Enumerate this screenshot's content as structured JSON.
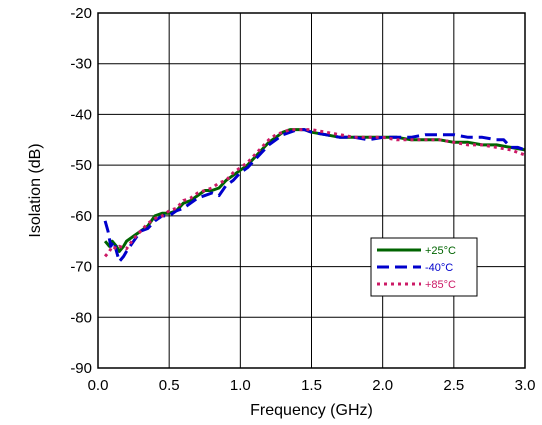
{
  "chart_data": {
    "type": "line",
    "title": "",
    "xlabel": "Frequency (GHz)",
    "ylabel": "Isolation (dB)",
    "xlim": [
      0.0,
      3.0
    ],
    "ylim": [
      -90,
      -20
    ],
    "xticks": [
      0.0,
      0.5,
      1.0,
      1.5,
      2.0,
      2.5,
      3.0
    ],
    "xtick_labels": [
      "0.0",
      "0.5",
      "1.0",
      "1.5",
      "2.0",
      "2.5",
      "3.0"
    ],
    "yticks": [
      -90,
      -80,
      -70,
      -60,
      -50,
      -40,
      -30,
      -20
    ],
    "ytick_labels": [
      "-90",
      "-80",
      "-70",
      "-60",
      "-50",
      "-40",
      "-30",
      "-20"
    ],
    "grid": true,
    "legend_position": "lower-right",
    "series": [
      {
        "name": "+25°C",
        "color": "#006400",
        "style": "solid",
        "x": [
          0.05,
          0.08,
          0.1,
          0.13,
          0.15,
          0.18,
          0.2,
          0.25,
          0.3,
          0.35,
          0.4,
          0.45,
          0.5,
          0.55,
          0.6,
          0.65,
          0.7,
          0.75,
          0.8,
          0.85,
          0.9,
          0.95,
          1.0,
          1.05,
          1.1,
          1.15,
          1.2,
          1.25,
          1.3,
          1.35,
          1.4,
          1.45,
          1.5,
          1.6,
          1.7,
          1.8,
          1.9,
          2.0,
          2.1,
          2.2,
          2.3,
          2.4,
          2.5,
          2.6,
          2.7,
          2.8,
          2.9,
          3.0
        ],
        "y": [
          -65,
          -66,
          -65,
          -66,
          -67,
          -66,
          -65,
          -64,
          -63,
          -62,
          -60,
          -59.5,
          -59.5,
          -59,
          -57.5,
          -57,
          -56,
          -55,
          -55,
          -54.5,
          -53,
          -52,
          -51,
          -50,
          -48.5,
          -47,
          -45.5,
          -44.5,
          -43.5,
          -43,
          -43,
          -43,
          -43.5,
          -44,
          -44.5,
          -44.5,
          -44.5,
          -44.5,
          -44.5,
          -45,
          -45,
          -45,
          -45.5,
          -45.5,
          -46,
          -46,
          -46.5,
          -47
        ]
      },
      {
        "name": "-40°C",
        "color": "#0000cc",
        "style": "dashed",
        "x": [
          0.05,
          0.07,
          0.09,
          0.11,
          0.13,
          0.15,
          0.18,
          0.2,
          0.25,
          0.3,
          0.35,
          0.4,
          0.45,
          0.5,
          0.55,
          0.6,
          0.65,
          0.7,
          0.75,
          0.8,
          0.85,
          0.9,
          0.95,
          1.0,
          1.05,
          1.1,
          1.15,
          1.2,
          1.25,
          1.3,
          1.35,
          1.4,
          1.45,
          1.5,
          1.6,
          1.7,
          1.8,
          1.9,
          2.0,
          2.1,
          2.2,
          2.3,
          2.4,
          2.5,
          2.6,
          2.7,
          2.8,
          2.85,
          2.9,
          2.95,
          3.0
        ],
        "y": [
          -61,
          -63,
          -66,
          -65,
          -67,
          -69,
          -68,
          -67,
          -65,
          -63,
          -62.5,
          -61,
          -60,
          -60,
          -59,
          -58.5,
          -57.5,
          -56.5,
          -56,
          -55.5,
          -56,
          -54,
          -53,
          -51.5,
          -50.5,
          -49,
          -47.5,
          -46,
          -45,
          -44,
          -43.5,
          -43,
          -43,
          -43.5,
          -44,
          -44.5,
          -44.5,
          -45,
          -44.5,
          -44.5,
          -44.5,
          -44,
          -44,
          -44,
          -44.5,
          -44.5,
          -45,
          -45,
          -46.5,
          -46.5,
          -47
        ]
      },
      {
        "name": "+85°C",
        "color": "#cc1a66",
        "style": "dotted",
        "x": [
          0.05,
          0.08,
          0.1,
          0.13,
          0.15,
          0.2,
          0.25,
          0.3,
          0.35,
          0.4,
          0.45,
          0.5,
          0.55,
          0.6,
          0.65,
          0.7,
          0.75,
          0.8,
          0.85,
          0.9,
          0.95,
          1.0,
          1.05,
          1.1,
          1.15,
          1.2,
          1.25,
          1.3,
          1.35,
          1.4,
          1.5,
          1.6,
          1.7,
          1.8,
          1.9,
          2.0,
          2.1,
          2.2,
          2.3,
          2.4,
          2.5,
          2.6,
          2.7,
          2.8,
          2.9,
          2.95,
          3.0
        ],
        "y": [
          -68,
          -67,
          -66,
          -66.5,
          -66,
          -66.5,
          -64.5,
          -63,
          -61.5,
          -60.5,
          -60,
          -59,
          -58.5,
          -57,
          -56.5,
          -55.5,
          -55,
          -54.5,
          -53.5,
          -53,
          -51.5,
          -50.5,
          -49.5,
          -48,
          -46.5,
          -45,
          -44,
          -43.5,
          -43,
          -43,
          -43,
          -43.5,
          -44,
          -44.5,
          -44.5,
          -44.5,
          -45,
          -45,
          -45,
          -45,
          -45.5,
          -46,
          -46,
          -46.5,
          -47,
          -47.5,
          -48
        ]
      }
    ]
  }
}
